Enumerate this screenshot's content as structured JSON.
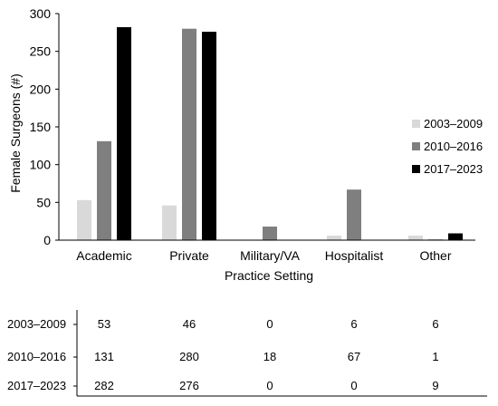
{
  "chart_data": {
    "type": "bar",
    "title": "",
    "xlabel": "Practice Setting",
    "ylabel": "Female Surgeons (#)",
    "ylim": [
      0,
      300
    ],
    "yticks": [
      0,
      50,
      100,
      150,
      200,
      250,
      300
    ],
    "grid": false,
    "legend_position": "right",
    "categories": [
      "Academic",
      "Private",
      "Military/VA",
      "Hospitalist",
      "Other"
    ],
    "series": [
      {
        "name": "2003–2009",
        "color": "#d9d9d9",
        "values": [
          53,
          46,
          0,
          6,
          6
        ]
      },
      {
        "name": "2010–2016",
        "color": "#7f7f7f",
        "values": [
          131,
          280,
          18,
          67,
          1
        ]
      },
      {
        "name": "2017–2023",
        "color": "#000000",
        "values": [
          282,
          276,
          0,
          0,
          9
        ]
      }
    ],
    "table": {
      "rows": [
        {
          "label": "2003–2009",
          "cells": [
            "53",
            "46",
            "0",
            "6",
            "6"
          ]
        },
        {
          "label": "2010–2016",
          "cells": [
            "131",
            "280",
            "18",
            "67",
            "1"
          ]
        },
        {
          "label": "2017–2023",
          "cells": [
            "282",
            "276",
            "0",
            "0",
            "9"
          ]
        }
      ]
    }
  }
}
